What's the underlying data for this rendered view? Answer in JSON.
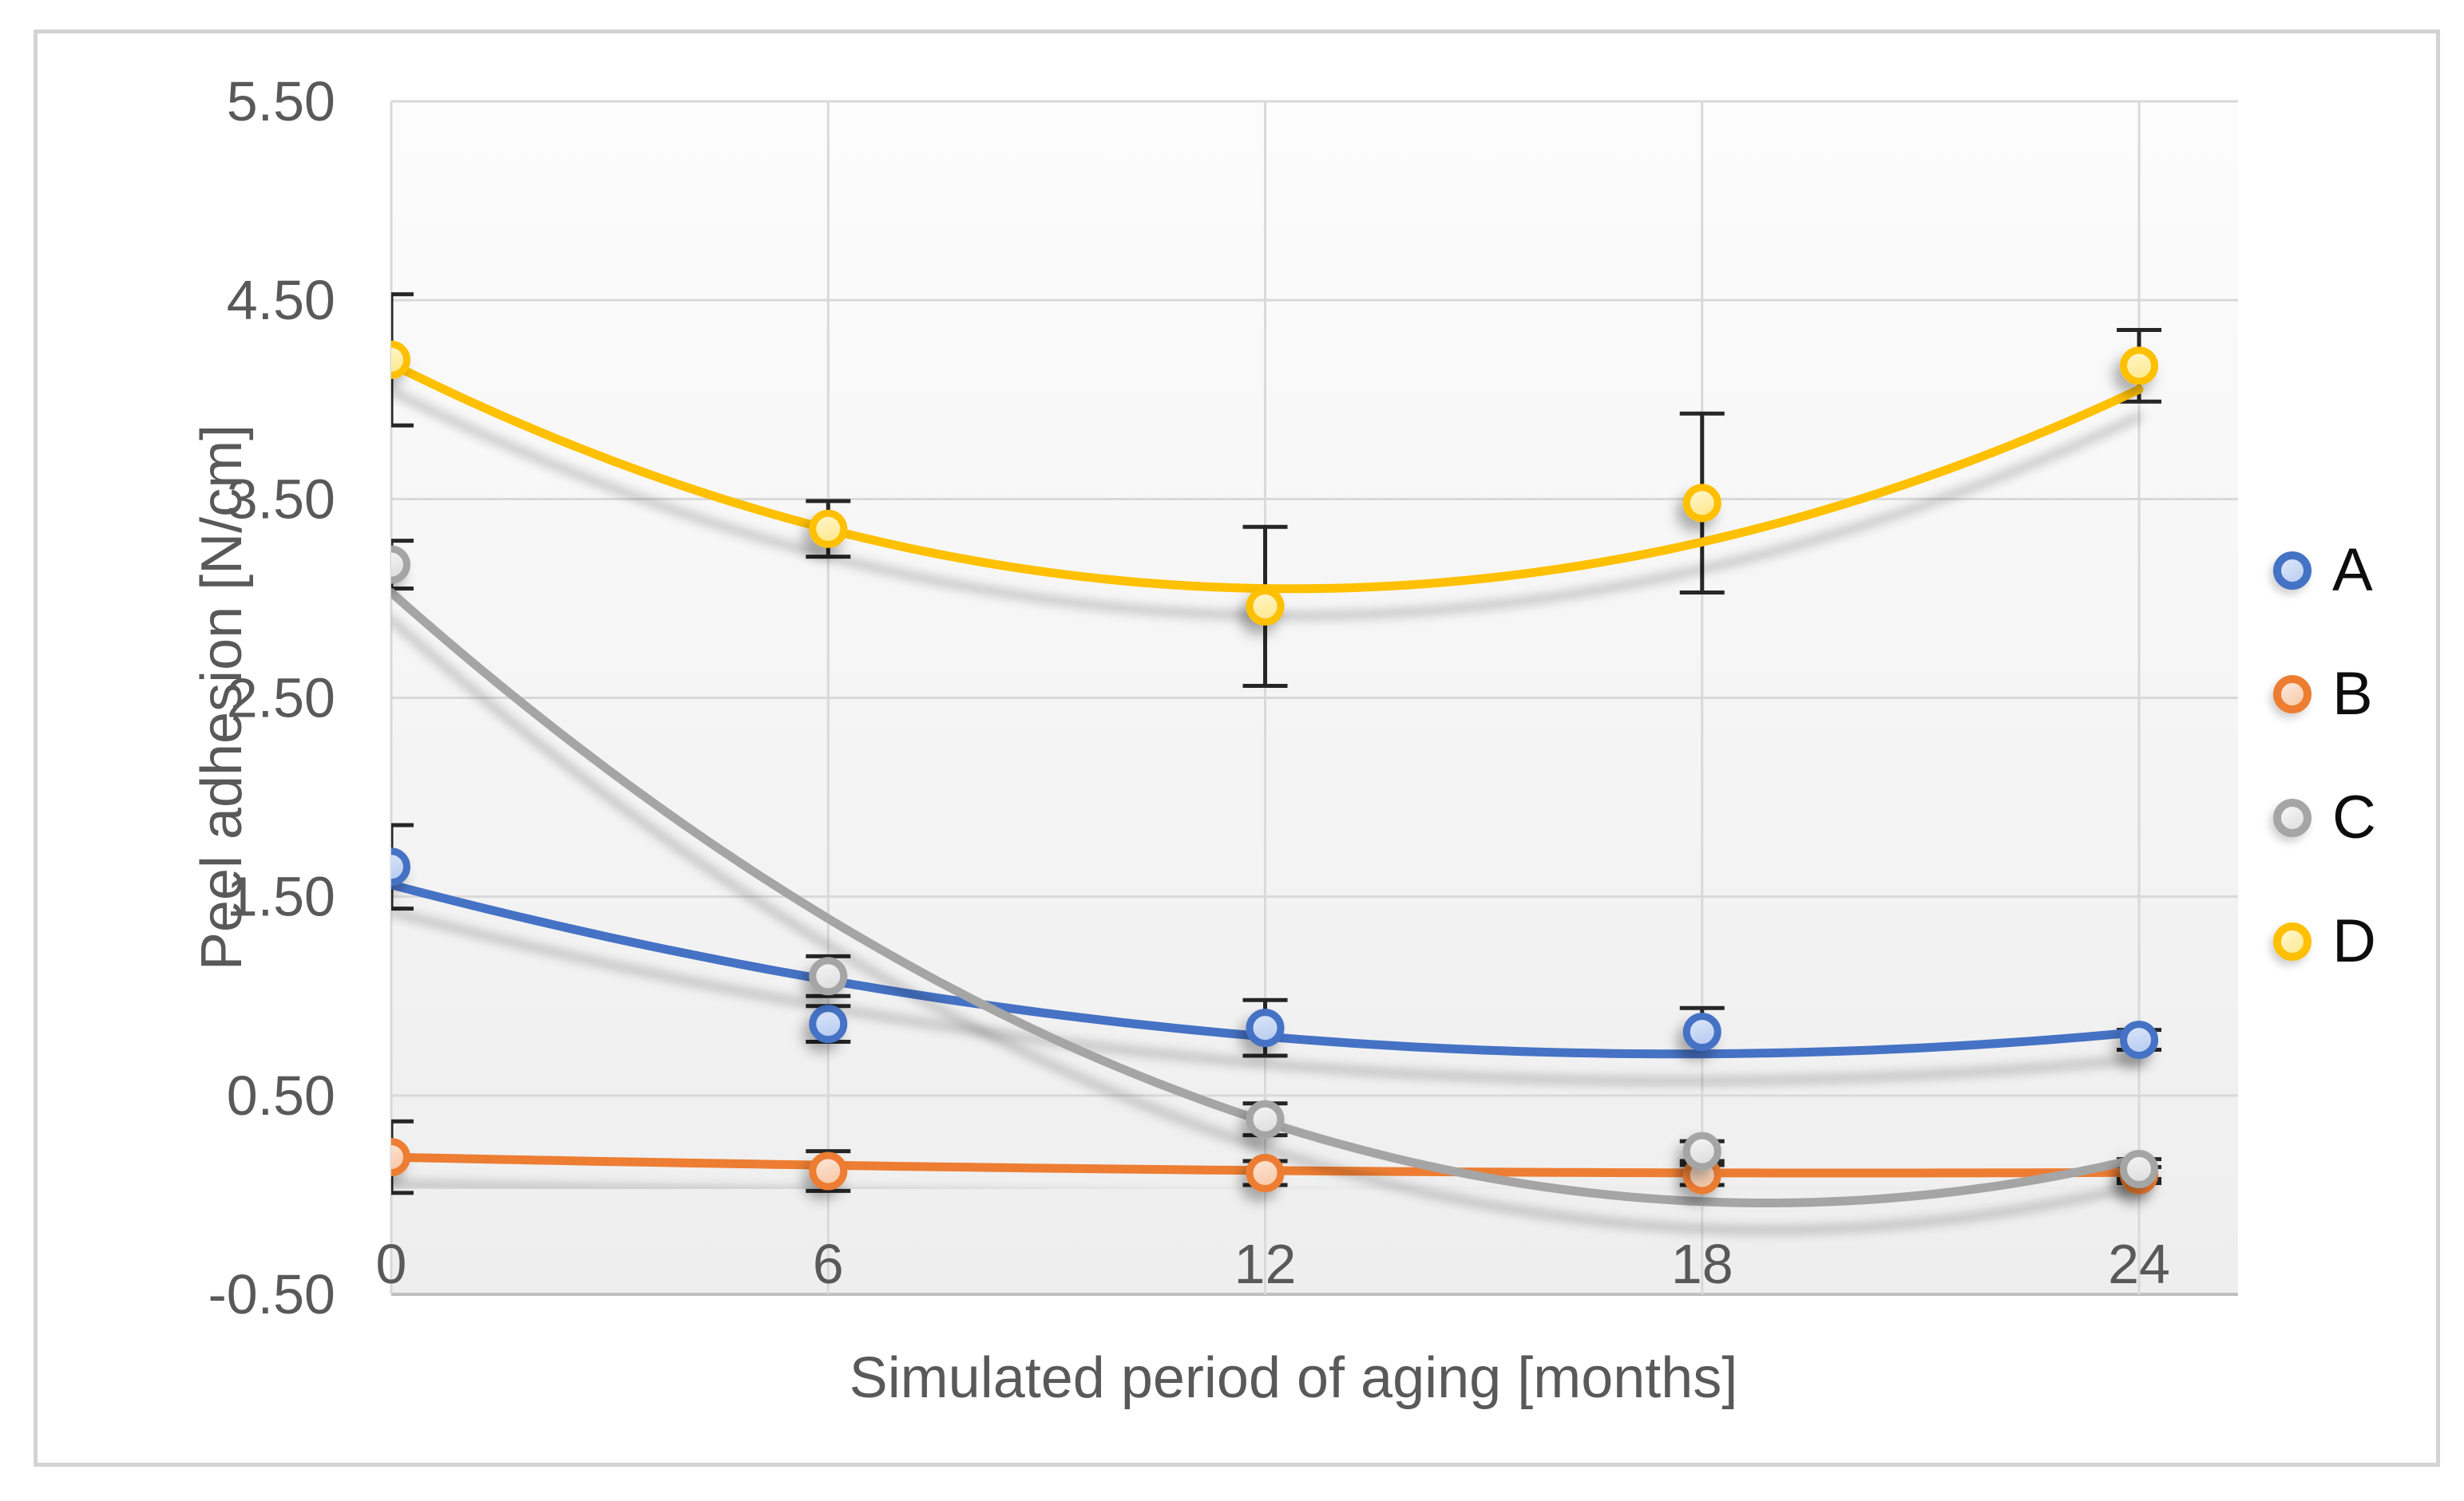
{
  "colors": {
    "frame_border": "#d3d3d3",
    "gridline": "#d9d9d9",
    "axis_line": "#bfbfbf",
    "tick_text": "#595959",
    "legend_text": "#0d0d0d",
    "error_bar": "#262626",
    "plot_bg_top": "#fcfcfc",
    "plot_bg_bottom": "#eeeeee"
  },
  "chart_data": {
    "type": "scatter",
    "title": "",
    "xlabel": "Simulated period of aging [months]",
    "ylabel": "Peel adhesion [N/cm]",
    "x": [
      0,
      6,
      12,
      18,
      24
    ],
    "x_ticks": [
      "0",
      "6",
      "12",
      "18",
      "24"
    ],
    "y_ticks": [
      "5.50",
      "4.50",
      "3.50",
      "2.50",
      "1.50",
      "0.50",
      "-0.50"
    ],
    "xlim": [
      0,
      25.4
    ],
    "ylim": [
      -0.5,
      5.5
    ],
    "grid": true,
    "legend_position": "right",
    "error_bars": true,
    "trendline": "polynomial_order_2",
    "series": [
      {
        "name": "A",
        "color": "#4472C4",
        "fill_light": "#DEE8FA",
        "fill": "#B8CCF0",
        "values": [
          1.65,
          0.86,
          0.84,
          0.82,
          0.78
        ],
        "errors": [
          0.21,
          0.09,
          0.14,
          0.12,
          0.05
        ],
        "trend": {
          "a": 0.00273,
          "b": -0.0964,
          "c": 1.56
        }
      },
      {
        "name": "B",
        "color": "#ED7D31",
        "fill_light": "#FDE9DC",
        "fill": "#F8C9A8",
        "values": [
          0.19,
          0.12,
          0.11,
          0.1,
          0.1
        ],
        "errors": [
          0.18,
          0.1,
          0.06,
          0.05,
          0.04
        ],
        "trend": {
          "a": 0.0002,
          "b": -0.008,
          "c": 0.19
        }
      },
      {
        "name": "C",
        "color": "#A5A5A5",
        "fill_light": "#F7F7F7",
        "fill": "#DEDEDE",
        "values": [
          3.17,
          1.1,
          0.38,
          0.22,
          0.13
        ],
        "errors": [
          0.12,
          0.1,
          0.08,
          0.05,
          0.05
        ],
        "trend": {
          "a": 0.0086,
          "b": -0.325,
          "c": 3.03
        }
      },
      {
        "name": "D",
        "color": "#FFC000",
        "fill_light": "#FFF7D1",
        "fill": "#FFE98F",
        "values": [
          4.2,
          3.35,
          2.96,
          3.48,
          4.17
        ],
        "errors": [
          0.33,
          0.14,
          0.4,
          0.45,
          0.18
        ],
        "trend": {
          "a": 0.0074,
          "b": -0.183,
          "c": 4.18
        }
      }
    ]
  }
}
